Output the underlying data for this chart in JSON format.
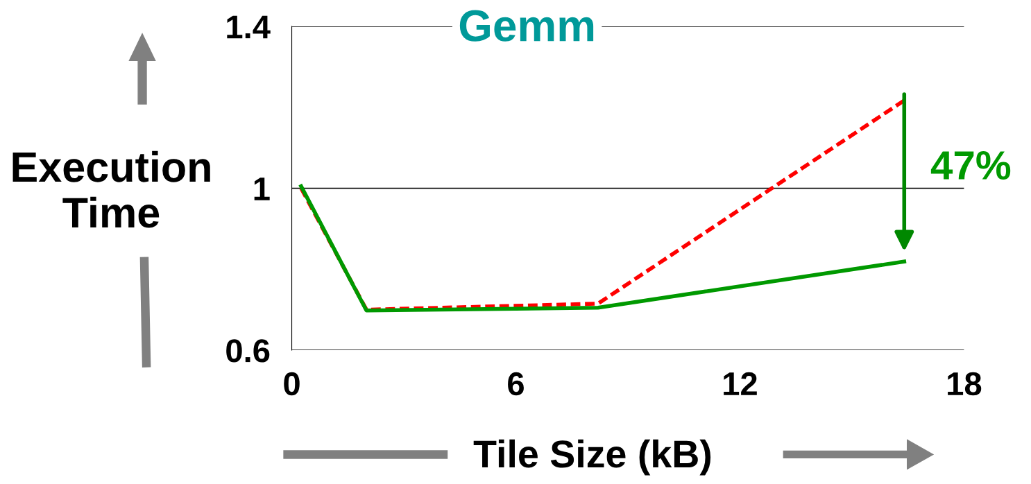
{
  "chart_data": {
    "type": "line",
    "title": "Gemm",
    "xlabel": "Tile Size (kB)",
    "ylabel": "Execution\nTime",
    "x": [
      0.25,
      2,
      8.2,
      16.4
    ],
    "series": [
      {
        "color": "#ff0000",
        "values": [
          1.0,
          0.7,
          0.715,
          1.217
        ],
        "line_style": "dashed"
      },
      {
        "color": "#009900",
        "values": [
          1.005,
          0.698,
          0.705,
          0.819
        ],
        "line_style": "solid"
      }
    ],
    "xlim": [
      0,
      18
    ],
    "xticks": [
      0,
      6,
      12,
      18
    ],
    "ylim": [
      0.6,
      1.4
    ],
    "yticks": [
      0.6,
      1,
      1.4
    ],
    "grid": "y",
    "marker": "none",
    "annotations": [
      "47%"
    ]
  }
}
